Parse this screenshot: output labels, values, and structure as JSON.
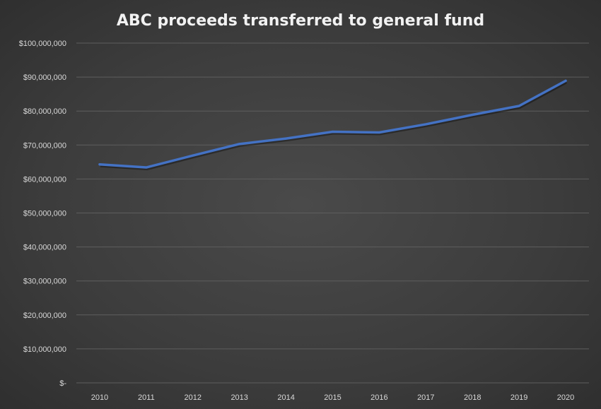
{
  "chart_data": {
    "type": "line",
    "title": "ABC proceeds transferred to general fund",
    "xlabel": "",
    "ylabel": "",
    "categories": [
      "2010",
      "2011",
      "2012",
      "2013",
      "2014",
      "2015",
      "2016",
      "2017",
      "2018",
      "2019",
      "2020"
    ],
    "series": [
      {
        "name": "ABC proceeds",
        "color": "#4472c4",
        "values": [
          64300000,
          63400000,
          66900000,
          70300000,
          71900000,
          73900000,
          73700000,
          76100000,
          78900000,
          81500000,
          88900000
        ]
      }
    ],
    "ylim": [
      0,
      100000000
    ],
    "yticks": [
      0,
      10000000,
      20000000,
      30000000,
      40000000,
      50000000,
      60000000,
      70000000,
      80000000,
      90000000,
      100000000
    ],
    "ytick_labels": [
      "$-",
      "$10,000,000",
      "$20,000,000",
      "$30,000,000",
      "$40,000,000",
      "$50,000,000",
      "$60,000,000",
      "$70,000,000",
      "$80,000,000",
      "$90,000,000",
      "$100,000,000"
    ],
    "grid": true,
    "legend": "none"
  }
}
